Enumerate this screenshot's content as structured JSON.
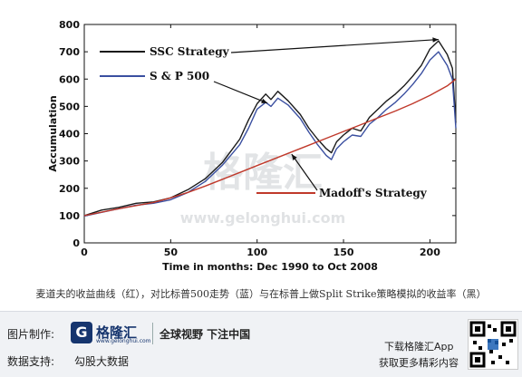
{
  "chart_data": {
    "type": "line",
    "xlabel": "Time in months: Dec 1990 to Oct 2008",
    "ylabel": "Accumulation",
    "xlim": [
      0,
      215
    ],
    "ylim": [
      0,
      800
    ],
    "xticks": [
      0,
      50,
      100,
      150,
      200
    ],
    "yticks": [
      0,
      100,
      200,
      300,
      400,
      500,
      600,
      700,
      800
    ],
    "series": [
      {
        "name": "SSC Strategy",
        "color": "#1a1a1a",
        "points": [
          [
            0,
            100
          ],
          [
            10,
            120
          ],
          [
            20,
            130
          ],
          [
            30,
            145
          ],
          [
            40,
            150
          ],
          [
            50,
            165
          ],
          [
            60,
            195
          ],
          [
            70,
            235
          ],
          [
            80,
            295
          ],
          [
            90,
            380
          ],
          [
            95,
            450
          ],
          [
            100,
            510
          ],
          [
            105,
            545
          ],
          [
            108,
            525
          ],
          [
            112,
            555
          ],
          [
            118,
            520
          ],
          [
            125,
            470
          ],
          [
            130,
            420
          ],
          [
            135,
            380
          ],
          [
            140,
            345
          ],
          [
            143,
            330
          ],
          [
            146,
            370
          ],
          [
            150,
            395
          ],
          [
            155,
            420
          ],
          [
            160,
            410
          ],
          [
            165,
            460
          ],
          [
            170,
            490
          ],
          [
            175,
            520
          ],
          [
            180,
            545
          ],
          [
            185,
            575
          ],
          [
            190,
            610
          ],
          [
            195,
            650
          ],
          [
            200,
            710
          ],
          [
            205,
            740
          ],
          [
            210,
            690
          ],
          [
            213,
            640
          ],
          [
            215,
            440
          ]
        ]
      },
      {
        "name": "S & P 500",
        "color": "#3a4fa0",
        "points": [
          [
            0,
            98
          ],
          [
            10,
            112
          ],
          [
            20,
            125
          ],
          [
            30,
            138
          ],
          [
            40,
            145
          ],
          [
            50,
            158
          ],
          [
            60,
            185
          ],
          [
            70,
            225
          ],
          [
            80,
            285
          ],
          [
            90,
            360
          ],
          [
            95,
            420
          ],
          [
            100,
            490
          ],
          [
            105,
            515
          ],
          [
            108,
            500
          ],
          [
            112,
            530
          ],
          [
            118,
            505
          ],
          [
            125,
            455
          ],
          [
            130,
            405
          ],
          [
            135,
            360
          ],
          [
            140,
            320
          ],
          [
            143,
            305
          ],
          [
            146,
            345
          ],
          [
            150,
            370
          ],
          [
            155,
            395
          ],
          [
            160,
            390
          ],
          [
            165,
            435
          ],
          [
            170,
            460
          ],
          [
            175,
            490
          ],
          [
            180,
            515
          ],
          [
            185,
            545
          ],
          [
            190,
            580
          ],
          [
            195,
            620
          ],
          [
            200,
            670
          ],
          [
            205,
            700
          ],
          [
            210,
            650
          ],
          [
            213,
            600
          ],
          [
            215,
            420
          ]
        ]
      },
      {
        "name": "Madoff's Strategy",
        "color": "#c0392b",
        "points": [
          [
            0,
            100
          ],
          [
            20,
            125
          ],
          [
            40,
            148
          ],
          [
            50,
            165
          ],
          [
            60,
            185
          ],
          [
            70,
            208
          ],
          [
            80,
            233
          ],
          [
            90,
            258
          ],
          [
            100,
            283
          ],
          [
            110,
            308
          ],
          [
            120,
            333
          ],
          [
            130,
            358
          ],
          [
            140,
            383
          ],
          [
            150,
            408
          ],
          [
            160,
            433
          ],
          [
            170,
            458
          ],
          [
            180,
            483
          ],
          [
            190,
            510
          ],
          [
            200,
            540
          ],
          [
            210,
            575
          ],
          [
            215,
            600
          ]
        ]
      }
    ],
    "annotations": [
      {
        "text": "SSC Strategy",
        "target_series": "SSC Strategy"
      },
      {
        "text": "S & P 500",
        "target_series": "S & P 500"
      },
      {
        "text": "Madoff's Strategy",
        "target_series": "Madoff's Strategy"
      }
    ],
    "grid": false,
    "watermark": {
      "text": "格隆汇",
      "url": "www.gelonghui.com"
    }
  },
  "caption": "麦道夫的收益曲线（红），对比标普500走势（蓝）与在标普上做Split Strike策略模拟的收益率（黑）",
  "footer": {
    "made_by_label": "图片制作:",
    "logo_name": "格隆汇",
    "logo_url": "www.gelonghui.com",
    "slogan": "全球视野 下注中国",
    "data_support_label": "数据支持:",
    "data_support_value": "勾股大数据",
    "download_label": "下载格隆汇App",
    "more_label": "获取更多精彩内容"
  }
}
